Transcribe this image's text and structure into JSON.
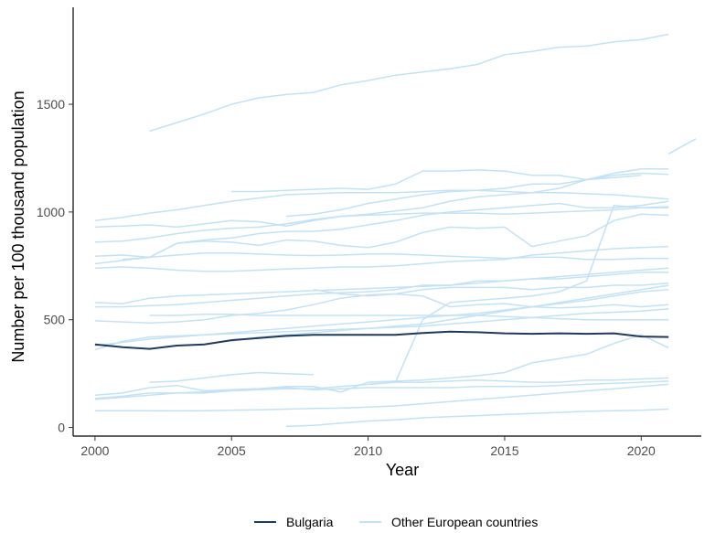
{
  "chart_data": {
    "type": "line",
    "title": "",
    "xlabel": "Year",
    "ylabel": "Number per 100 thousand population",
    "xlim": [
      1999.2,
      2022.2
    ],
    "ylim": [
      -40,
      1950
    ],
    "x_ticks": [
      2000,
      2005,
      2010,
      2015,
      2020
    ],
    "y_ticks": [
      0,
      500,
      1000,
      1500
    ],
    "grid": false,
    "legend": {
      "position": "bottom",
      "entries": [
        {
          "name": "Bulgaria",
          "color": "#1f3a5f"
        },
        {
          "name": "Other European countries",
          "color": "#c3e2f5"
        }
      ]
    },
    "series": [
      {
        "name": "Bulgaria",
        "highlight": true,
        "x": [
          2000,
          2001,
          2002,
          2003,
          2004,
          2005,
          2006,
          2007,
          2008,
          2009,
          2010,
          2011,
          2012,
          2013,
          2014,
          2015,
          2016,
          2017,
          2018,
          2019,
          2020,
          2021
        ],
        "values": [
          385,
          373,
          365,
          380,
          385,
          405,
          415,
          425,
          430,
          430,
          430,
          430,
          438,
          445,
          442,
          437,
          435,
          437,
          435,
          437,
          422,
          420
        ]
      },
      {
        "x": [
          2002,
          2003,
          2004,
          2005,
          2006,
          2007,
          2008,
          2009,
          2010,
          2011,
          2012,
          2013,
          2014,
          2015,
          2016,
          2017,
          2018,
          2019,
          2020,
          2021
        ],
        "values": [
          1375,
          1415,
          1455,
          1500,
          1530,
          1545,
          1555,
          1590,
          1610,
          1635,
          1650,
          1665,
          1685,
          1730,
          1745,
          1765,
          1770,
          1790,
          1800,
          1825
        ]
      },
      {
        "x": [
          2021,
          2022
        ],
        "values": [
          1270,
          1340
        ]
      },
      {
        "x": [
          2000,
          2001,
          2002,
          2003,
          2004,
          2005,
          2006,
          2007,
          2008,
          2009,
          2010,
          2011,
          2012,
          2013,
          2014,
          2015,
          2016,
          2017,
          2018,
          2019,
          2020,
          2021
        ],
        "values": [
          960,
          975,
          995,
          1010,
          1030,
          1050,
          1065,
          1080,
          1085,
          1090,
          1090,
          1090,
          1095,
          1100,
          1100,
          1095,
          1090,
          1090,
          1085,
          1080,
          1070,
          1060
        ]
      },
      {
        "x": [
          2005,
          2006,
          2007,
          2008,
          2009,
          2010,
          2011,
          2012,
          2013,
          2014,
          2015,
          2016,
          2017,
          2018,
          2019,
          2020,
          2021
        ],
        "values": [
          1095,
          1095,
          1100,
          1105,
          1110,
          1105,
          1130,
          1190,
          1190,
          1195,
          1190,
          1170,
          1170,
          1150,
          1170,
          1180,
          1175
        ]
      },
      {
        "x": [
          2007,
          2008,
          2009,
          2010,
          2011,
          2012,
          2013,
          2014,
          2015,
          2016,
          2017,
          2018,
          2019,
          2020,
          2021
        ],
        "values": [
          980,
          990,
          1010,
          1040,
          1060,
          1080,
          1095,
          1100,
          1110,
          1130,
          1130,
          1150,
          1180,
          1200,
          1200
        ]
      },
      {
        "x": [
          2000,
          2001,
          2002,
          2003,
          2004,
          2005,
          2006,
          2007,
          2008,
          2009,
          2010,
          2011,
          2012,
          2013,
          2014,
          2015,
          2016,
          2017,
          2018,
          2019,
          2020
        ],
        "values": [
          930,
          935,
          940,
          930,
          945,
          960,
          955,
          935,
          960,
          980,
          990,
          1005,
          1020,
          1050,
          1070,
          1080,
          1090,
          1110,
          1150,
          1160,
          1170
        ]
      },
      {
        "x": [
          2000,
          2001,
          2002,
          2003,
          2004,
          2005,
          2006,
          2007,
          2008,
          2009,
          2010,
          2011,
          2012,
          2013,
          2014,
          2015,
          2016,
          2017,
          2018,
          2019,
          2020,
          2021
        ],
        "values": [
          860,
          865,
          880,
          900,
          915,
          925,
          930,
          945,
          965,
          980,
          985,
          990,
          995,
          995,
          995,
          990,
          995,
          1000,
          1005,
          1010,
          1020,
          1025
        ]
      },
      {
        "x": [
          2000,
          2001,
          2002,
          2003,
          2004,
          2005,
          2006,
          2007,
          2008,
          2009,
          2010,
          2011,
          2012,
          2013,
          2014,
          2015,
          2016,
          2017,
          2018,
          2019,
          2020,
          2021
        ],
        "values": [
          795,
          800,
          790,
          855,
          865,
          860,
          845,
          870,
          865,
          845,
          835,
          860,
          905,
          930,
          925,
          930,
          840,
          865,
          890,
          960,
          990,
          985
        ]
      },
      {
        "x": [
          2000,
          2001,
          2002,
          2003,
          2004,
          2005,
          2006,
          2007,
          2008,
          2009,
          2010,
          2011,
          2012,
          2013,
          2014,
          2015,
          2016,
          2017,
          2018,
          2019,
          2020,
          2021
        ],
        "values": [
          760,
          775,
          790,
          800,
          810,
          810,
          805,
          800,
          798,
          800,
          805,
          805,
          800,
          795,
          790,
          785,
          790,
          790,
          780,
          780,
          785,
          785
        ]
      },
      {
        "x": [
          2000,
          2001,
          2002,
          2003,
          2004,
          2005,
          2006,
          2007,
          2008,
          2009,
          2010,
          2011,
          2012,
          2013,
          2014,
          2015,
          2016,
          2017,
          2018,
          2019,
          2020,
          2021
        ],
        "values": [
          740,
          745,
          740,
          730,
          725,
          725,
          730,
          735,
          740,
          745,
          745,
          750,
          760,
          770,
          775,
          780,
          800,
          810,
          820,
          830,
          835,
          840
        ]
      },
      {
        "x": [
          2001,
          2002,
          2003,
          2004,
          2005,
          2006,
          2007,
          2008,
          2009,
          2010,
          2011,
          2012,
          2013,
          2014,
          2015,
          2016,
          2017,
          2018,
          2019,
          2020,
          2021
        ],
        "values": [
          780,
          790,
          855,
          870,
          880,
          900,
          910,
          910,
          920,
          940,
          960,
          985,
          1000,
          1010,
          1020,
          1030,
          1040,
          1020,
          1020,
          1030,
          1050
        ]
      },
      {
        "x": [
          2000,
          2001,
          2002,
          2003,
          2004,
          2005,
          2006,
          2007,
          2008,
          2009,
          2010,
          2011,
          2012,
          2013,
          2014,
          2015,
          2016,
          2017,
          2018,
          2019,
          2020,
          2021
        ],
        "values": [
          580,
          575,
          600,
          610,
          615,
          620,
          625,
          630,
          635,
          640,
          645,
          650,
          655,
          660,
          670,
          680,
          690,
          700,
          710,
          720,
          730,
          740
        ]
      },
      {
        "x": [
          2000,
          2001,
          2002,
          2003,
          2004,
          2005,
          2006,
          2007,
          2008,
          2009,
          2010,
          2011,
          2012,
          2013,
          2014,
          2015,
          2016,
          2017,
          2018,
          2019,
          2020,
          2021
        ],
        "values": [
          560,
          560,
          565,
          570,
          580,
          590,
          600,
          610,
          620,
          625,
          630,
          640,
          660,
          660,
          680,
          680,
          690,
          690,
          700,
          710,
          720,
          720
        ]
      },
      {
        "x": [
          2000,
          2001,
          2002,
          2003,
          2004,
          2005,
          2006,
          2007,
          2008,
          2009,
          2010,
          2011,
          2012,
          2013,
          2014,
          2015,
          2016,
          2017,
          2018,
          2019,
          2020,
          2021
        ],
        "values": [
          495,
          490,
          485,
          490,
          500,
          520,
          530,
          545,
          570,
          600,
          615,
          620,
          610,
          560,
          570,
          575,
          560,
          555,
          560,
          570,
          560,
          570
        ]
      },
      {
        "x": [
          2000,
          2001,
          2002,
          2003,
          2004,
          2005,
          2006,
          2007,
          2008,
          2009,
          2010,
          2011,
          2012,
          2013,
          2014,
          2015,
          2016,
          2017,
          2018,
          2019,
          2020,
          2021
        ],
        "values": [
          380,
          395,
          410,
          420,
          430,
          440,
          450,
          460,
          470,
          480,
          490,
          500,
          510,
          520,
          530,
          545,
          560,
          575,
          590,
          610,
          630,
          640
        ]
      },
      {
        "x": [
          2000,
          2001,
          2002,
          2003,
          2004,
          2005,
          2006,
          2007,
          2008,
          2009,
          2010,
          2011,
          2012,
          2013,
          2014,
          2015,
          2016,
          2017,
          2018,
          2019,
          2020,
          2021
        ],
        "values": [
          360,
          400,
          420,
          425,
          430,
          435,
          440,
          445,
          450,
          455,
          460,
          465,
          470,
          480,
          490,
          500,
          510,
          520,
          530,
          535,
          540,
          550
        ]
      },
      {
        "x": [
          2002,
          2003,
          2004,
          2005,
          2006,
          2007,
          2008,
          2009,
          2010,
          2011,
          2012,
          2013,
          2014,
          2015,
          2016,
          2017,
          2018,
          2019,
          2020,
          2021
        ],
        "values": [
          520,
          520,
          525,
          525,
          520,
          520,
          520,
          520,
          520,
          520,
          520,
          520,
          520,
          515,
          510,
          505,
          500,
          500,
          500,
          500
        ]
      },
      {
        "x": [
          2005,
          2006,
          2007,
          2008,
          2009,
          2010,
          2011,
          2012,
          2013,
          2014,
          2015,
          2016,
          2017,
          2018,
          2019,
          2020,
          2021
        ],
        "values": [
          400,
          420,
          430,
          440,
          450,
          460,
          470,
          480,
          500,
          520,
          540,
          560,
          580,
          600,
          620,
          640,
          660
        ]
      },
      {
        "x": [
          2008,
          2009,
          2010,
          2011,
          2012,
          2013,
          2014,
          2015,
          2016,
          2017,
          2018,
          2019,
          2020,
          2021
        ],
        "values": [
          640,
          620,
          610,
          620,
          640,
          650,
          650,
          650,
          640,
          650,
          650,
          660,
          660,
          670
        ]
      },
      {
        "x": [
          2000,
          2001,
          2002,
          2003,
          2004,
          2005,
          2006,
          2007,
          2008,
          2009,
          2010,
          2011,
          2012,
          2013,
          2014,
          2015,
          2016,
          2017,
          2018,
          2019,
          2020,
          2021
        ],
        "values": [
          150,
          160,
          185,
          195,
          170,
          175,
          180,
          190,
          190,
          165,
          210,
          215,
          220,
          230,
          240,
          255,
          300,
          320,
          340,
          390,
          430,
          370
        ]
      },
      {
        "x": [
          2002,
          2003,
          2004,
          2005,
          2006,
          2007,
          2008
        ],
        "values": [
          210,
          215,
          230,
          245,
          255,
          250,
          245
        ]
      },
      {
        "x": [
          2000,
          2001,
          2002,
          2003,
          2004,
          2005,
          2006,
          2007,
          2008,
          2009,
          2010,
          2011,
          2012,
          2013,
          2014,
          2015,
          2016,
          2017,
          2018,
          2019,
          2020,
          2021
        ],
        "values": [
          135,
          145,
          160,
          160,
          160,
          170,
          175,
          180,
          180,
          190,
          200,
          210,
          210,
          215,
          220,
          215,
          210,
          210,
          220,
          220,
          225,
          230
        ]
      },
      {
        "x": [
          2000,
          2001,
          2002,
          2003,
          2004,
          2005,
          2006,
          2007,
          2008,
          2009,
          2010,
          2011,
          2012,
          2013,
          2014,
          2015,
          2016,
          2017,
          2018,
          2019,
          2020,
          2021
        ],
        "values": [
          130,
          140,
          150,
          160,
          165,
          175,
          180,
          185,
          175,
          180,
          185,
          185,
          185,
          185,
          190,
          190,
          190,
          195,
          200,
          205,
          210,
          215
        ]
      },
      {
        "x": [
          2000,
          2001,
          2002,
          2003,
          2004,
          2005,
          2006,
          2007,
          2008,
          2009,
          2010,
          2011,
          2012,
          2013,
          2014,
          2015,
          2016,
          2017,
          2018,
          2019,
          2020,
          2021
        ],
        "values": [
          78,
          78,
          78,
          77,
          78,
          80,
          82,
          85,
          88,
          90,
          95,
          100,
          110,
          120,
          130,
          140,
          150,
          160,
          170,
          180,
          190,
          200
        ]
      },
      {
        "x": [
          2007,
          2008,
          2009,
          2010,
          2011,
          2012,
          2013,
          2014,
          2015,
          2016,
          2017,
          2018,
          2019,
          2020,
          2021
        ],
        "values": [
          5,
          10,
          20,
          30,
          35,
          45,
          50,
          55,
          60,
          65,
          70,
          75,
          78,
          80,
          85
        ]
      },
      {
        "x": [
          2010,
          2011,
          2012,
          2013,
          2014,
          2015,
          2016,
          2017,
          2018,
          2019,
          2020,
          2021
        ],
        "values": [
          200,
          210,
          500,
          580,
          590,
          600,
          610,
          630,
          680,
          1030,
          1020,
          1020
        ]
      }
    ]
  }
}
